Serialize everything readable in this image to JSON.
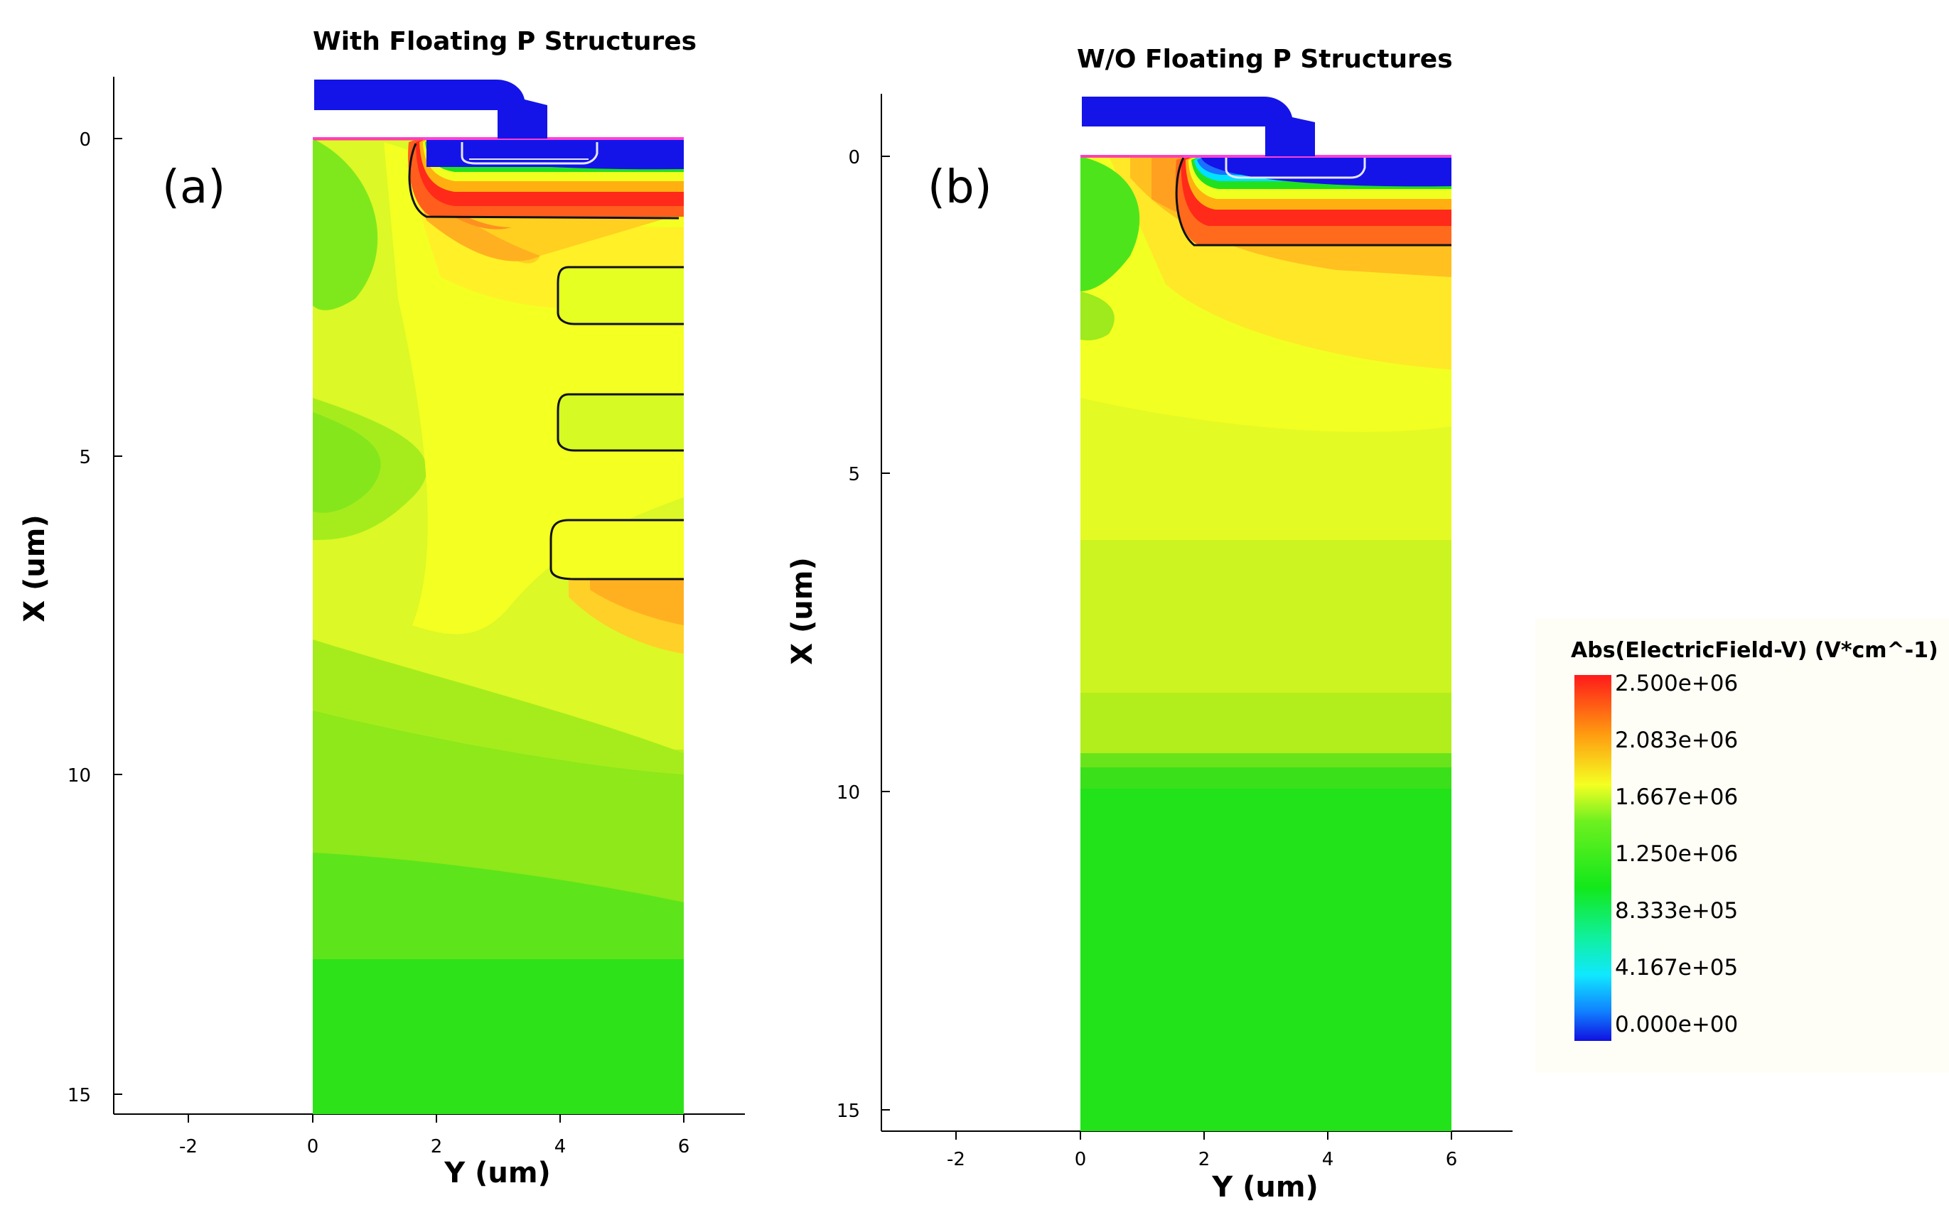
{
  "chart_data": [
    {
      "type": "heatmap",
      "panel": "(a)",
      "title": "With Floating P Structures",
      "xlabel": "Y (um)",
      "ylabel": "X (um)",
      "xticks": [
        "-2",
        "0",
        "2",
        "4",
        "6"
      ],
      "yticks": [
        "0",
        "5",
        "10",
        "15"
      ],
      "xlim": [
        -3.2,
        7
      ],
      "ylim": [
        15.3,
        -1
      ],
      "device_y_range": [
        0,
        6
      ],
      "device_x_range": [
        0,
        15
      ]
    },
    {
      "type": "heatmap",
      "panel": "(b)",
      "title": "W/O Floating P Structures",
      "xlabel": "Y (um)",
      "ylabel": "X (um)",
      "xticks": [
        "-2",
        "0",
        "2",
        "4",
        "6"
      ],
      "yticks": [
        "0",
        "5",
        "10",
        "15"
      ],
      "xlim": [
        -3.2,
        7
      ],
      "ylim": [
        15.3,
        -1
      ],
      "device_y_range": [
        0,
        6
      ],
      "device_x_range": [
        0,
        15
      ]
    }
  ],
  "legend": {
    "title": "Abs(ElectricField-V) (V*cm^-1)",
    "labels": [
      "2.500e+06",
      "2.083e+06",
      "1.667e+06",
      "1.250e+06",
      "8.333e+05",
      "4.167e+05",
      "0.000e+00"
    ],
    "colors": [
      "#ff2a1a",
      "#ffb010",
      "#f0ff20",
      "#22e01e",
      "#00ffcc",
      "#00c8ff",
      "#1414e8"
    ]
  }
}
